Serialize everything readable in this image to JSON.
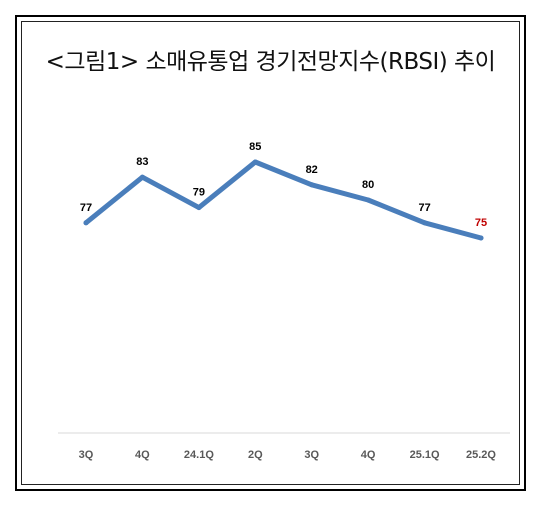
{
  "chart_data": {
    "type": "line",
    "title": "<그림1> 소매유통업 경기전망지수(RBSI) 추이",
    "categories": [
      "3Q",
      "4Q",
      "24.1Q",
      "2Q",
      "3Q",
      "4Q",
      "25.1Q",
      "25.2Q"
    ],
    "series": [
      {
        "values": [
          77,
          83,
          79,
          85,
          82,
          80,
          77,
          75
        ]
      }
    ],
    "data_labels": [
      "77",
      "83",
      "79",
      "85",
      "82",
      "80",
      "77",
      "75"
    ],
    "highlight_index": 7,
    "line_color": "#4A7EBB",
    "label_color": "#000000",
    "highlight_color": "#C00000",
    "grid": false,
    "legend": "none"
  }
}
